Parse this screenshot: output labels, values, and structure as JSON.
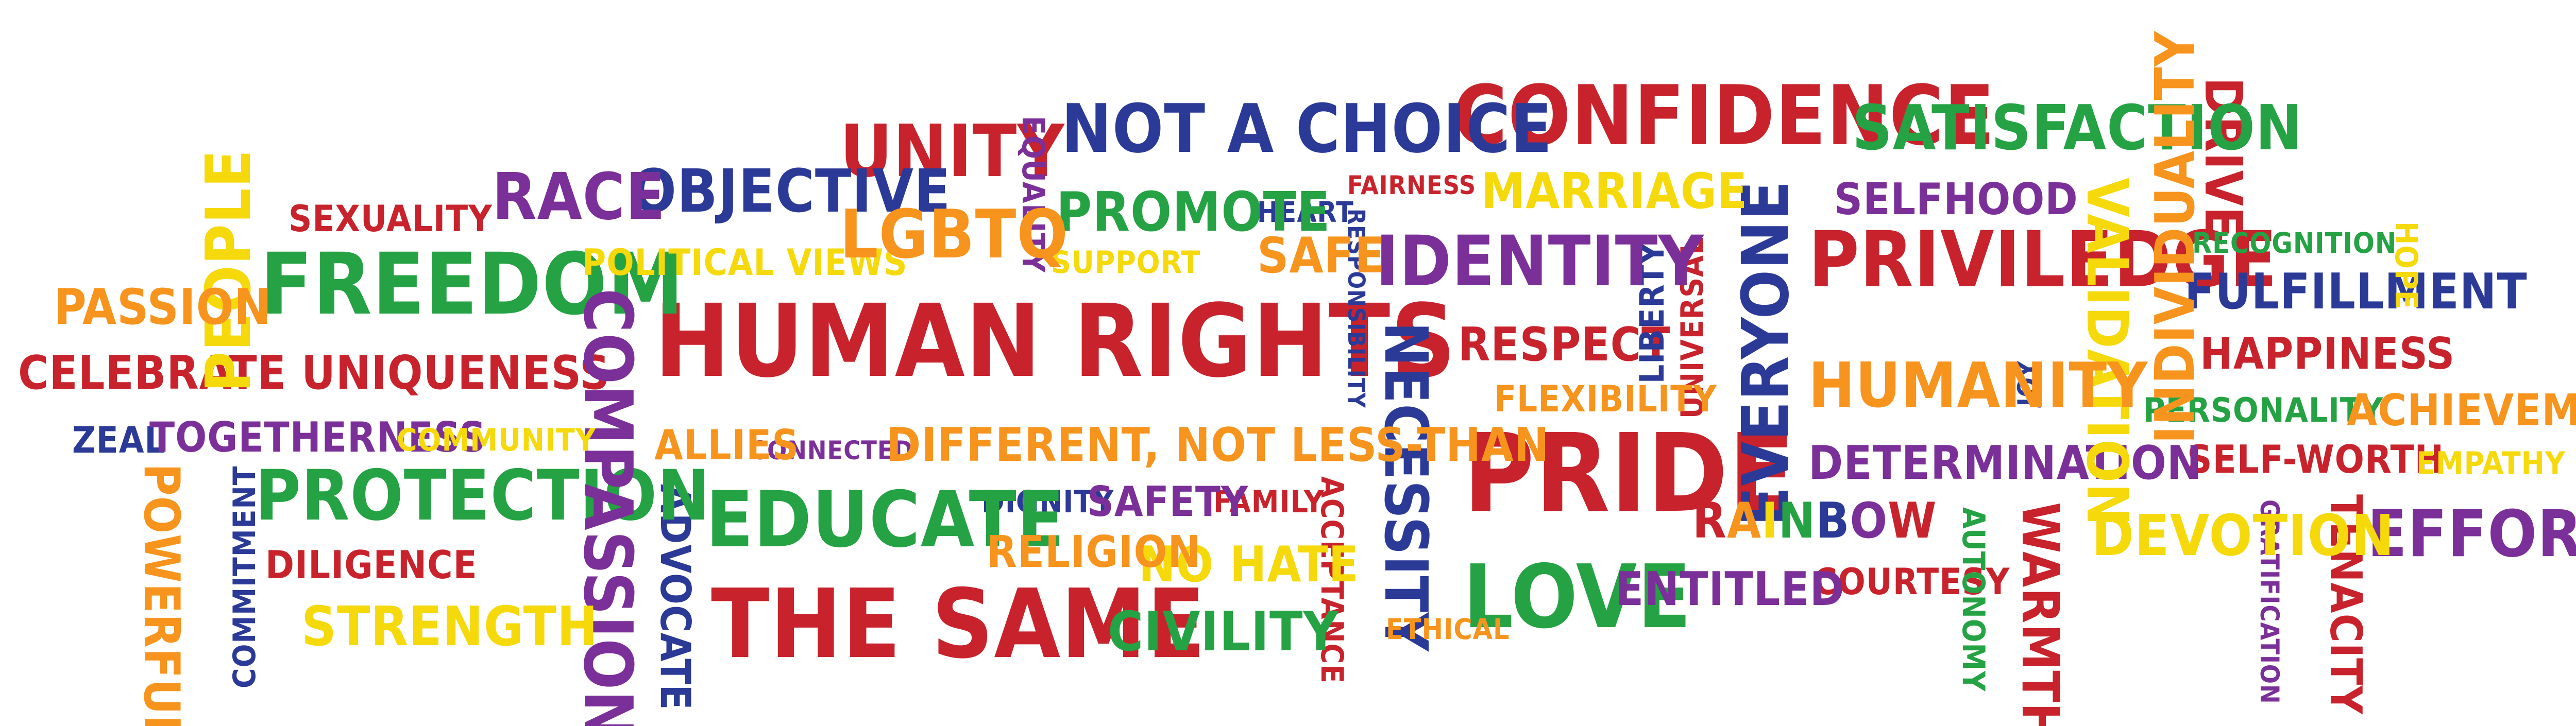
{
  "colors": {
    "red": "#C8232C",
    "orange": "#F7941D",
    "yellow": "#F5D90A",
    "green": "#25A244",
    "blue": "#2B3A97",
    "purple": "#7B2F98"
  },
  "words": [
    {
      "text": "CONFIDENCE",
      "color": "red"
    },
    {
      "text": "HUMAN RIGHTS",
      "color": "red"
    },
    {
      "text": "PRIDE",
      "color": "red"
    },
    {
      "text": "THE SAME",
      "color": "red"
    },
    {
      "text": "PRIVILEDGE",
      "color": "red"
    },
    {
      "text": "UNITY",
      "color": "red"
    },
    {
      "text": "SEXUALITY",
      "color": "red"
    },
    {
      "text": "CELEBRATE UNIQUENESS",
      "color": "red"
    },
    {
      "text": "DILIGENCE",
      "color": "red"
    },
    {
      "text": "FAIRNESS",
      "color": "red"
    },
    {
      "text": "RESPECT",
      "color": "red"
    },
    {
      "text": "UNIVERSAL",
      "color": "red"
    },
    {
      "text": "HAPPINESS",
      "color": "red"
    },
    {
      "text": "SELF-WORTH",
      "color": "red"
    },
    {
      "text": "WARMTH",
      "color": "red"
    },
    {
      "text": "TENACITY",
      "color": "red"
    },
    {
      "text": "DRIVE",
      "color": "red"
    },
    {
      "text": "COURTESY",
      "color": "red"
    },
    {
      "text": "ACCEPTANCE",
      "color": "red"
    },
    {
      "text": "FAMILY",
      "color": "red"
    },
    {
      "text": "NOT A CHOICE",
      "color": "blue"
    },
    {
      "text": "OBJECTIVE",
      "color": "blue"
    },
    {
      "text": "NECESSITY",
      "color": "blue"
    },
    {
      "text": "EVERYONE",
      "color": "blue"
    },
    {
      "text": "LIBERTY",
      "color": "blue"
    },
    {
      "text": "FULFILLMENT",
      "color": "blue"
    },
    {
      "text": "ZEAL",
      "color": "blue"
    },
    {
      "text": "COMMITMENT",
      "color": "blue"
    },
    {
      "text": "ADVOCATE",
      "color": "blue"
    },
    {
      "text": "DIGNITY",
      "color": "blue"
    },
    {
      "text": "JOY",
      "color": "blue"
    },
    {
      "text": "HEART",
      "color": "blue"
    },
    {
      "text": "RESPONSIBILITY",
      "color": "blue"
    },
    {
      "text": "FREEDOM",
      "color": "green"
    },
    {
      "text": "PROTECTION",
      "color": "green"
    },
    {
      "text": "EDUCATE",
      "color": "green"
    },
    {
      "text": "PROMOTE",
      "color": "green"
    },
    {
      "text": "SATISFACTION",
      "color": "green"
    },
    {
      "text": "CIVILITY",
      "color": "green"
    },
    {
      "text": "LOVE",
      "color": "green"
    },
    {
      "text": "PERSONALITY",
      "color": "green"
    },
    {
      "text": "RECOGNITION",
      "color": "green"
    },
    {
      "text": "AUTONOMY",
      "color": "green"
    },
    {
      "text": "RACE",
      "color": "purple"
    },
    {
      "text": "COMPASSION",
      "color": "purple"
    },
    {
      "text": "IDENTITY",
      "color": "purple"
    },
    {
      "text": "TOGETHERNESS",
      "color": "purple"
    },
    {
      "text": "SAFETY",
      "color": "purple"
    },
    {
      "text": "EQUALITY",
      "color": "purple"
    },
    {
      "text": "SELFHOOD",
      "color": "purple"
    },
    {
      "text": "DETERMINATION",
      "color": "purple"
    },
    {
      "text": "ENTITLED",
      "color": "purple"
    },
    {
      "text": "EFFORT",
      "color": "purple"
    },
    {
      "text": "GRATIFICATION",
      "color": "purple"
    },
    {
      "text": "CONNECTED",
      "color": "purple"
    },
    {
      "text": "PEOPLE",
      "color": "yellow"
    },
    {
      "text": "POLITICAL VIEWS",
      "color": "yellow"
    },
    {
      "text": "MARRIAGE",
      "color": "yellow"
    },
    {
      "text": "STRENGTH",
      "color": "yellow"
    },
    {
      "text": "VALIDATION",
      "color": "yellow"
    },
    {
      "text": "DEVOTION",
      "color": "yellow"
    },
    {
      "text": "NO HATE",
      "color": "yellow"
    },
    {
      "text": "HOPE",
      "color": "yellow"
    },
    {
      "text": "EMPATHY",
      "color": "yellow"
    },
    {
      "text": "COMMUNITY",
      "color": "yellow"
    },
    {
      "text": "SUPPORT",
      "color": "yellow"
    },
    {
      "text": "PASSION",
      "color": "orange"
    },
    {
      "text": "LGBTQ",
      "color": "orange"
    },
    {
      "text": "SAFE",
      "color": "orange"
    },
    {
      "text": "POWERFUL",
      "color": "orange"
    },
    {
      "text": "ALLIES",
      "color": "orange"
    },
    {
      "text": "DIFFERENT, NOT LESS-THAN",
      "color": "orange"
    },
    {
      "text": "RELIGION",
      "color": "orange"
    },
    {
      "text": "HUMANITY",
      "color": "orange"
    },
    {
      "text": "FLEXIBILITY",
      "color": "orange"
    },
    {
      "text": "INDIVIDUALITY",
      "color": "orange"
    },
    {
      "text": "ACHIEVEMENT",
      "color": "orange"
    },
    {
      "text": "ETHICAL",
      "color": "orange"
    }
  ],
  "rainbow": {
    "letters": [
      "R",
      "A",
      "I",
      "N",
      "B",
      "O",
      "W"
    ],
    "colors": [
      "red",
      "orange",
      "yellow",
      "green",
      "blue",
      "purple",
      "red"
    ]
  }
}
